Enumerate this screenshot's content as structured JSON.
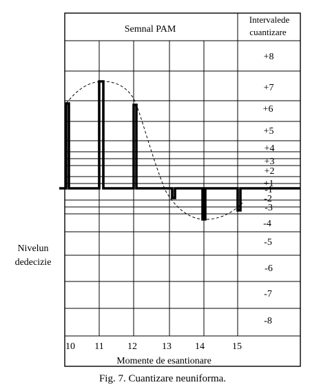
{
  "header": {
    "signal_title": "Semnal PAM",
    "intervals_title_line1": "Intervalede",
    "intervals_title_line2": "cuantizare"
  },
  "levels": [
    "+8",
    "+7",
    "+6",
    "+5",
    "+4",
    "+3",
    "+2",
    "+1",
    "-1",
    "-2",
    "-3",
    "-4",
    "-5",
    "-6",
    "-7",
    "-8"
  ],
  "side_label": {
    "line1": "Nivelun",
    "line2": "dedecizie"
  },
  "x_ticks": [
    "10",
    "11",
    "12",
    "13",
    "14",
    "15"
  ],
  "x_axis_label": "Momente de esantionare",
  "caption": "Fig. 7. Cuantizare neuniforma."
}
